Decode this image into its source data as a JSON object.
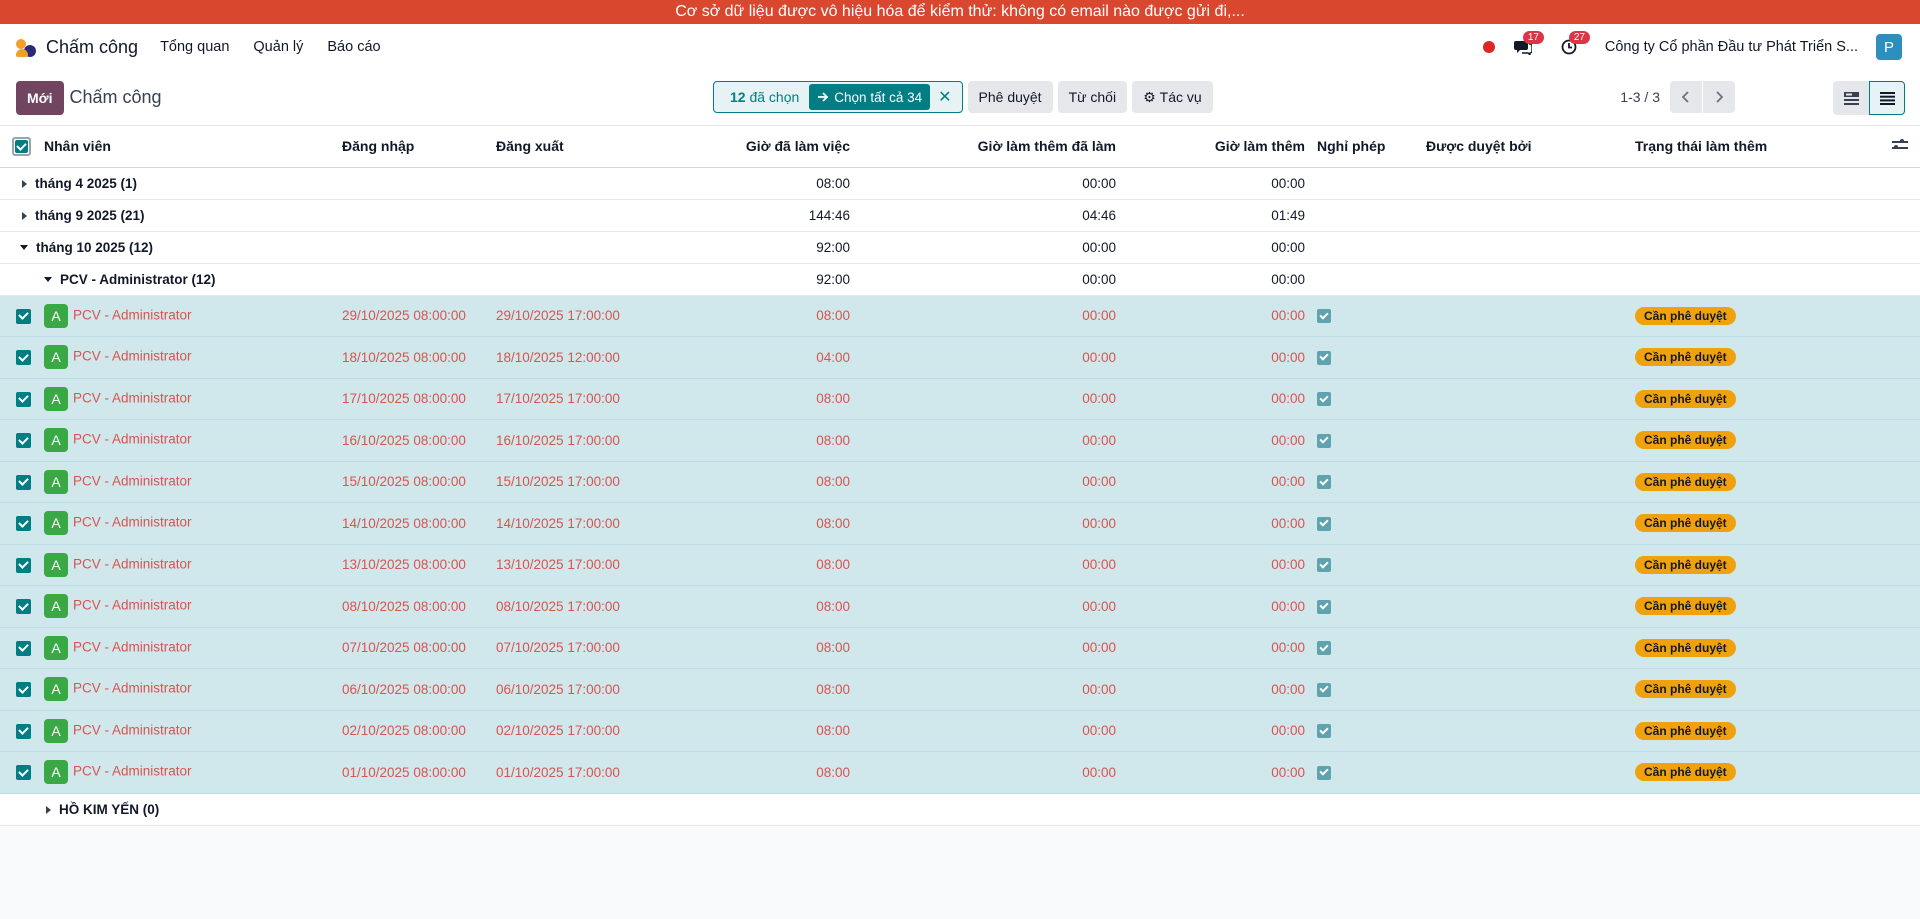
{
  "banner": "Cơ sở dữ liệu được vô hiệu hóa để kiểm thử: không có email nào được gửi đi,...",
  "navbar": {
    "app_name": "Chấm công",
    "menu": [
      "Tổng quan",
      "Quản lý",
      "Báo cáo"
    ],
    "messages_count": "17",
    "activities_count": "27",
    "company": "Công ty Cổ phần Đầu tư Phát Triển S...",
    "user_initial": "P"
  },
  "control_panel": {
    "new_label": "Mới",
    "breadcrumb": "Chấm công",
    "selected_count": "12",
    "selected_suffix": "đã chọn",
    "select_all_label": "Chọn tất cả 34",
    "approve_label": "Phê duyệt",
    "reject_label": "Từ chối",
    "actions_label": "Tác vụ",
    "pager": "1-3 / 3"
  },
  "columns": [
    "Nhân viên",
    "Đăng nhập",
    "Đăng xuất",
    "Giờ đã làm việc",
    "Giờ làm thêm đã làm",
    "Giờ làm thêm",
    "Nghỉ phép",
    "Được duyệt bởi",
    "Trạng thái làm thêm"
  ],
  "groups": [
    {
      "label": "tháng 4 2025 (1)",
      "worked": "08:00",
      "ot_done": "00:00",
      "ot": "00:00"
    },
    {
      "label": "tháng 9 2025 (21)",
      "worked": "144:46",
      "ot_done": "04:46",
      "ot": "01:49"
    },
    {
      "label": "tháng 10 2025 (12)",
      "worked": "92:00",
      "ot_done": "00:00",
      "ot": "00:00"
    }
  ],
  "subgroup": {
    "label": "PCV - Administrator (12)",
    "worked": "92:00",
    "ot_done": "00:00",
    "ot": "00:00"
  },
  "rows": [
    {
      "avatar": "A",
      "employee": "PCV - Administrator",
      "check_in": "29/10/2025 08:00:00",
      "check_out": "29/10/2025 17:00:00",
      "worked": "08:00",
      "ot_done": "00:00",
      "ot": "00:00",
      "status": "Cần phê duyệt"
    },
    {
      "avatar": "A",
      "employee": "PCV - Administrator",
      "check_in": "18/10/2025 08:00:00",
      "check_out": "18/10/2025 12:00:00",
      "worked": "04:00",
      "ot_done": "00:00",
      "ot": "00:00",
      "status": "Cần phê duyệt"
    },
    {
      "avatar": "A",
      "employee": "PCV - Administrator",
      "check_in": "17/10/2025 08:00:00",
      "check_out": "17/10/2025 17:00:00",
      "worked": "08:00",
      "ot_done": "00:00",
      "ot": "00:00",
      "status": "Cần phê duyệt"
    },
    {
      "avatar": "A",
      "employee": "PCV - Administrator",
      "check_in": "16/10/2025 08:00:00",
      "check_out": "16/10/2025 17:00:00",
      "worked": "08:00",
      "ot_done": "00:00",
      "ot": "00:00",
      "status": "Cần phê duyệt"
    },
    {
      "avatar": "A",
      "employee": "PCV - Administrator",
      "check_in": "15/10/2025 08:00:00",
      "check_out": "15/10/2025 17:00:00",
      "worked": "08:00",
      "ot_done": "00:00",
      "ot": "00:00",
      "status": "Cần phê duyệt"
    },
    {
      "avatar": "A",
      "employee": "PCV - Administrator",
      "check_in": "14/10/2025 08:00:00",
      "check_out": "14/10/2025 17:00:00",
      "worked": "08:00",
      "ot_done": "00:00",
      "ot": "00:00",
      "status": "Cần phê duyệt"
    },
    {
      "avatar": "A",
      "employee": "PCV - Administrator",
      "check_in": "13/10/2025 08:00:00",
      "check_out": "13/10/2025 17:00:00",
      "worked": "08:00",
      "ot_done": "00:00",
      "ot": "00:00",
      "status": "Cần phê duyệt"
    },
    {
      "avatar": "A",
      "employee": "PCV - Administrator",
      "check_in": "08/10/2025 08:00:00",
      "check_out": "08/10/2025 17:00:00",
      "worked": "08:00",
      "ot_done": "00:00",
      "ot": "00:00",
      "status": "Cần phê duyệt"
    },
    {
      "avatar": "A",
      "employee": "PCV - Administrator",
      "check_in": "07/10/2025 08:00:00",
      "check_out": "07/10/2025 17:00:00",
      "worked": "08:00",
      "ot_done": "00:00",
      "ot": "00:00",
      "status": "Cần phê duyệt"
    },
    {
      "avatar": "A",
      "employee": "PCV - Administrator",
      "check_in": "06/10/2025 08:00:00",
      "check_out": "06/10/2025 17:00:00",
      "worked": "08:00",
      "ot_done": "00:00",
      "ot": "00:00",
      "status": "Cần phê duyệt"
    },
    {
      "avatar": "A",
      "employee": "PCV - Administrator",
      "check_in": "02/10/2025 08:00:00",
      "check_out": "02/10/2025 17:00:00",
      "worked": "08:00",
      "ot_done": "00:00",
      "ot": "00:00",
      "status": "Cần phê duyệt"
    },
    {
      "avatar": "A",
      "employee": "PCV - Administrator",
      "check_in": "01/10/2025 08:00:00",
      "check_out": "01/10/2025 17:00:00",
      "worked": "08:00",
      "ot_done": "00:00",
      "ot": "00:00",
      "status": "Cần phê duyệt"
    }
  ],
  "last_group": {
    "label": "HỒ KIM YẾN (0)"
  },
  "colors": {
    "banner": "#d9472f",
    "primary": "#71455f",
    "accent": "#017e84",
    "selected_row": "#d0e8ec",
    "row_text": "#d9534f",
    "status_pill": "#f0a20e"
  },
  "icons": [
    "app-logo-icon",
    "record-dot-icon",
    "chat-icon",
    "clock-icon",
    "arrow-right-icon",
    "close-icon",
    "gear-icon",
    "chevron-left-icon",
    "chevron-right-icon",
    "kanban-view-icon",
    "list-view-icon",
    "column-settings-icon"
  ]
}
